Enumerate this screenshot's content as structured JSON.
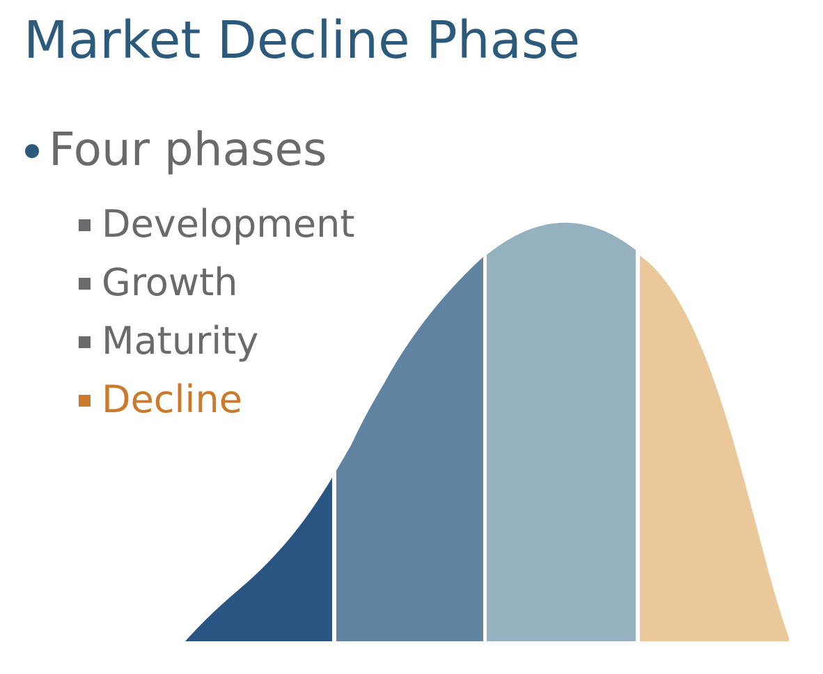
{
  "slide": {
    "title": "Market Decline Phase",
    "bullet": "Four phases",
    "phases": [
      {
        "label": "Development",
        "highlighted": false
      },
      {
        "label": "Growth",
        "highlighted": false
      },
      {
        "label": "Maturity",
        "highlighted": false
      },
      {
        "label": "Decline",
        "highlighted": true
      }
    ]
  },
  "colors": {
    "title": "#2c5a7c",
    "bullet_dot": "#2c5a7c",
    "text": "#6a6a6c",
    "highlight": "#cc7a2a",
    "segments": [
      "#2a5582",
      "#5f83a0",
      "#95b0be",
      "#eac89a"
    ]
  },
  "diagram": {
    "type": "life-cycle-curve",
    "segments": [
      "Development",
      "Growth",
      "Maturity",
      "Decline"
    ]
  }
}
